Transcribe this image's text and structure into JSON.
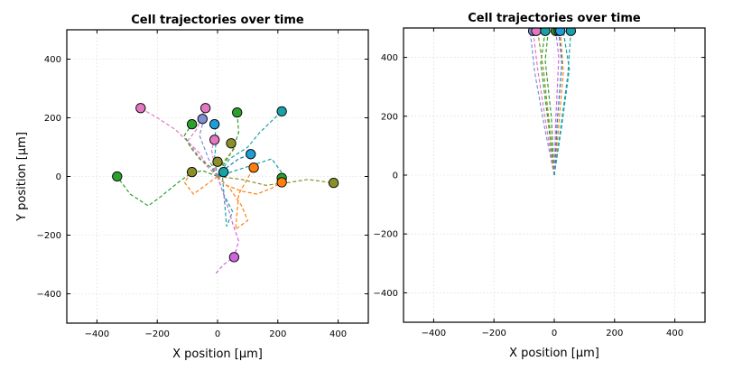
{
  "chart_data": [
    {
      "type": "line",
      "title": "Cell trajectories over time",
      "xlabel": "X position [μm]",
      "ylabel": "Y position [μm]",
      "xlim": [
        -500,
        500
      ],
      "ylim": [
        -500,
        500
      ],
      "xticks": [
        -400,
        -200,
        0,
        200,
        400
      ],
      "yticks": [
        -400,
        -200,
        0,
        200,
        400
      ],
      "xtick_labels": [
        "−400",
        "−200",
        "0",
        "200",
        "400"
      ],
      "ytick_labels": [
        "−400",
        "−200",
        "0",
        "200",
        "400"
      ],
      "grid": true,
      "series": [
        {
          "color": "#e377c2",
          "x": [
            0,
            -40,
            -70,
            -100,
            -140,
            -200,
            -255
          ],
          "y": [
            0,
            40,
            80,
            120,
            160,
            200,
            233
          ]
        },
        {
          "color": "#e377c2",
          "x": [
            0,
            -30,
            -60,
            -100,
            -70,
            -40
          ],
          "y": [
            0,
            30,
            80,
            120,
            160,
            233
          ]
        },
        {
          "color": "#2ca02c",
          "x": [
            0,
            -50,
            -90,
            -130,
            -190,
            -230,
            -290,
            -333
          ],
          "y": [
            0,
            20,
            10,
            -20,
            -70,
            -100,
            -60,
            0
          ]
        },
        {
          "color": "#2ca02c",
          "x": [
            0,
            -20,
            -60,
            -90,
            -110,
            -85
          ],
          "y": [
            0,
            30,
            60,
            100,
            140,
            178
          ]
        },
        {
          "color": "#2ca02c",
          "x": [
            0,
            20,
            50,
            70,
            65
          ],
          "y": [
            0,
            40,
            90,
            150,
            218
          ]
        },
        {
          "color": "#17a2a8",
          "x": [
            0,
            60,
            120,
            180,
            215
          ],
          "y": [
            0,
            20,
            40,
            60,
            10
          ]
        },
        {
          "color": "#17a2a8",
          "x": [
            0,
            40,
            100,
            140,
            180,
            213
          ],
          "y": [
            0,
            60,
            100,
            150,
            190,
            222
          ]
        },
        {
          "color": "#17a2a8",
          "x": [
            0,
            20,
            50,
            30,
            15
          ],
          "y": [
            0,
            -60,
            -120,
            -170,
            15
          ]
        },
        {
          "color": "#17a2a8",
          "x": [
            0,
            -10,
            -5,
            -10
          ],
          "y": [
            0,
            60,
            120,
            180
          ]
        },
        {
          "color": "#ff7f0e",
          "x": [
            0,
            40,
            80,
            100,
            60,
            70,
            120
          ],
          "y": [
            0,
            -40,
            -100,
            -150,
            -180,
            -60,
            30
          ]
        },
        {
          "color": "#ff7f0e",
          "x": [
            0,
            30,
            80,
            130,
            180,
            213
          ],
          "y": [
            0,
            -30,
            -50,
            -60,
            -40,
            -20
          ]
        },
        {
          "color": "#ff7f0e",
          "x": [
            0,
            -40,
            -80,
            -110,
            -85
          ],
          "y": [
            0,
            -30,
            -60,
            -20,
            15
          ]
        },
        {
          "color": "#8a8f2a",
          "x": [
            0,
            80,
            160,
            240,
            300,
            385
          ],
          "y": [
            0,
            -10,
            -30,
            -20,
            -10,
            -22
          ]
        },
        {
          "color": "#8a8f2a",
          "x": [
            0,
            20,
            60,
            45
          ],
          "y": [
            0,
            50,
            100,
            113
          ]
        },
        {
          "color": "#8a8f2a",
          "x": [
            0,
            -10,
            -15,
            0
          ],
          "y": [
            0,
            20,
            40,
            50
          ]
        },
        {
          "color": "#7f8fd6",
          "x": [
            0,
            -30,
            -60,
            -45
          ],
          "y": [
            0,
            60,
            140,
            196
          ]
        },
        {
          "color": "#cc66dd",
          "x": [
            0,
            30,
            50,
            70,
            55,
            20,
            -5
          ],
          "y": [
            0,
            -90,
            -160,
            -220,
            -275,
            -300,
            -330
          ]
        },
        {
          "color": "#1f77b4",
          "x": [
            0,
            30,
            70,
            110
          ],
          "y": [
            0,
            30,
            60,
            76
          ]
        },
        {
          "color": "#17a2a8",
          "x": [
            0,
            5,
            20
          ],
          "y": [
            0,
            8,
            15
          ]
        },
        {
          "color": "#e377c2",
          "x": [
            0,
            -10,
            -20,
            -10
          ],
          "y": [
            0,
            40,
            90,
            125
          ]
        }
      ],
      "endpoints": [
        {
          "x": -255,
          "y": 233,
          "color": "#e377c2"
        },
        {
          "x": -40,
          "y": 233,
          "color": "#e377c2"
        },
        {
          "x": -50,
          "y": 196,
          "color": "#7f8fd6"
        },
        {
          "x": -85,
          "y": 178,
          "color": "#2ca02c"
        },
        {
          "x": -10,
          "y": 178,
          "color": "#1f9dd6"
        },
        {
          "x": 65,
          "y": 218,
          "color": "#2ca02c"
        },
        {
          "x": 213,
          "y": 222,
          "color": "#17a2a8"
        },
        {
          "x": -10,
          "y": 125,
          "color": "#e377c2"
        },
        {
          "x": 45,
          "y": 113,
          "color": "#8a8f2a"
        },
        {
          "x": 110,
          "y": 76,
          "color": "#1f9dd6"
        },
        {
          "x": 0,
          "y": 50,
          "color": "#8a8f2a"
        },
        {
          "x": 120,
          "y": 30,
          "color": "#ff7f0e"
        },
        {
          "x": -85,
          "y": 15,
          "color": "#8a8f2a"
        },
        {
          "x": 20,
          "y": 15,
          "color": "#17a2a8"
        },
        {
          "x": -333,
          "y": 0,
          "color": "#2ca02c"
        },
        {
          "x": 213,
          "y": -5,
          "color": "#2ca02c"
        },
        {
          "x": 213,
          "y": -20,
          "color": "#ff7f0e"
        },
        {
          "x": 385,
          "y": -22,
          "color": "#8a8f2a"
        },
        {
          "x": 55,
          "y": -275,
          "color": "#cc66dd"
        }
      ]
    },
    {
      "type": "line",
      "title": "Cell trajectories over time",
      "xlabel": "X position [μm]",
      "ylabel": "",
      "xlim": [
        -500,
        500
      ],
      "ylim": [
        -500,
        500
      ],
      "xticks": [
        -400,
        -200,
        0,
        200,
        400
      ],
      "yticks": [
        -400,
        -200,
        0,
        200,
        400
      ],
      "xtick_labels": [
        "−400",
        "−200",
        "0",
        "200",
        "400"
      ],
      "ytick_labels": [
        "−400",
        "−200",
        "0",
        "200",
        "400"
      ],
      "grid": true,
      "series": [
        {
          "color": "#7f8fd6",
          "x": [
            0,
            -30,
            -65,
            -80
          ],
          "y": [
            0,
            150,
            350,
            490
          ]
        },
        {
          "color": "#e377c2",
          "x": [
            0,
            -25,
            -55,
            -70
          ],
          "y": [
            0,
            160,
            360,
            490
          ]
        },
        {
          "color": "#2ca02c",
          "x": [
            0,
            -20,
            -45,
            -30
          ],
          "y": [
            0,
            180,
            380,
            490
          ]
        },
        {
          "color": "#2ca02c",
          "x": [
            0,
            -10,
            -30,
            -20
          ],
          "y": [
            0,
            200,
            390,
            490
          ]
        },
        {
          "color": "#ff7f0e",
          "x": [
            0,
            15,
            30,
            20
          ],
          "y": [
            0,
            170,
            350,
            490
          ]
        },
        {
          "color": "#17a2a8",
          "x": [
            0,
            20,
            45,
            55
          ],
          "y": [
            0,
            150,
            340,
            490
          ]
        },
        {
          "color": "#1f77b4",
          "x": [
            0,
            10,
            25,
            15
          ],
          "y": [
            0,
            180,
            380,
            490
          ]
        },
        {
          "color": "#8a8f2a",
          "x": [
            0,
            -15,
            -35,
            -55
          ],
          "y": [
            0,
            160,
            350,
            490
          ]
        },
        {
          "color": "#cc66dd",
          "x": [
            0,
            5,
            15,
            5
          ],
          "y": [
            0,
            190,
            400,
            490
          ]
        },
        {
          "color": "#17a2a8",
          "x": [
            0,
            25,
            50,
            30
          ],
          "y": [
            0,
            170,
            360,
            490
          ]
        }
      ],
      "endpoints": [
        {
          "x": -70,
          "y": 490,
          "color": "#7f8fd6"
        },
        {
          "x": -60,
          "y": 490,
          "color": "#e377c2"
        },
        {
          "x": -30,
          "y": 490,
          "color": "#17a2a8"
        },
        {
          "x": 5,
          "y": 490,
          "color": "#2ca02c"
        },
        {
          "x": 15,
          "y": 490,
          "color": "#7f8fd6"
        },
        {
          "x": 20,
          "y": 490,
          "color": "#1f9dd6"
        },
        {
          "x": 55,
          "y": 490,
          "color": "#17a2a8"
        }
      ]
    }
  ]
}
